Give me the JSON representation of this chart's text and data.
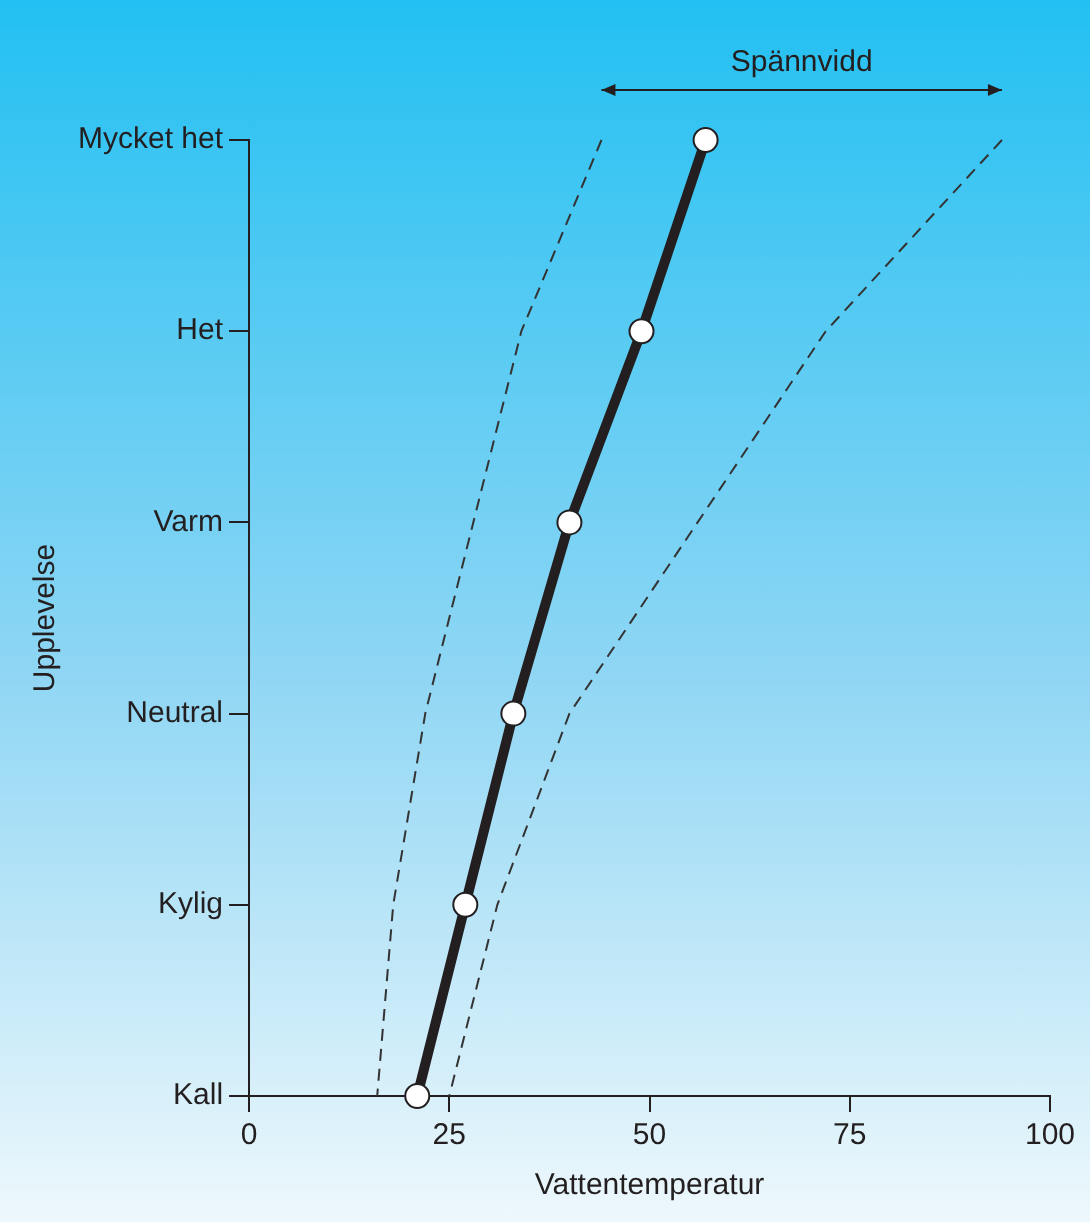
{
  "chart_data": {
    "type": "line",
    "xlabel": "Vattentemperatur",
    "ylabel": "Upplevelse",
    "annotations": [
      "Spännvidd"
    ],
    "categories": [
      "Mycket het",
      "Het",
      "Varm",
      "Neutral",
      "Kylig",
      "Kall"
    ],
    "series": [
      {
        "color": "#231f20",
        "values": [
          57,
          49,
          40,
          33,
          27,
          21
        ]
      },
      {
        "color": "#333333",
        "values": [
          44,
          34,
          28,
          22,
          18,
          16
        ],
        "line_style": "dashed",
        "marker": "none"
      },
      {
        "color": "#333333",
        "values": [
          94,
          72,
          56,
          40,
          31,
          25
        ],
        "line_style": "dashed",
        "marker": "none"
      }
    ],
    "orientation": "horizontal",
    "xlim": [
      0,
      100
    ],
    "xticks": [
      0,
      25,
      50,
      75,
      100
    ],
    "grid": false,
    "legend": false,
    "marker": "circle",
    "line_style": "solid"
  }
}
